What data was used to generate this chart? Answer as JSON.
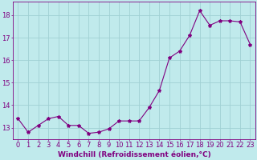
{
  "hours": [
    0,
    1,
    2,
    3,
    4,
    5,
    6,
    7,
    8,
    9,
    10,
    11,
    12,
    13,
    14,
    15,
    16,
    17,
    18,
    19,
    20,
    21,
    22,
    23
  ],
  "values": [
    13.4,
    12.8,
    13.1,
    13.4,
    13.5,
    13.1,
    13.1,
    12.75,
    12.8,
    12.95,
    13.3,
    13.3,
    13.3,
    13.9,
    14.65,
    16.1,
    16.4,
    17.1,
    18.2,
    17.55,
    17.75,
    17.75,
    17.7,
    16.7
  ],
  "line_color": "#800080",
  "marker": "*",
  "bg_color": "#c0eaec",
  "grid_color": "#a0d0d4",
  "xlabel": "Windchill (Refroidissement éolien,°C)",
  "ylim": [
    12.5,
    18.6
  ],
  "xlim": [
    -0.5,
    23.5
  ],
  "yticks": [
    13,
    14,
    15,
    16,
    17,
    18
  ],
  "xticks": [
    0,
    1,
    2,
    3,
    4,
    5,
    6,
    7,
    8,
    9,
    10,
    11,
    12,
    13,
    14,
    15,
    16,
    17,
    18,
    19,
    20,
    21,
    22,
    23
  ],
  "tick_color": "#800080",
  "label_fontsize": 6,
  "axis_label_fontsize": 6.5
}
